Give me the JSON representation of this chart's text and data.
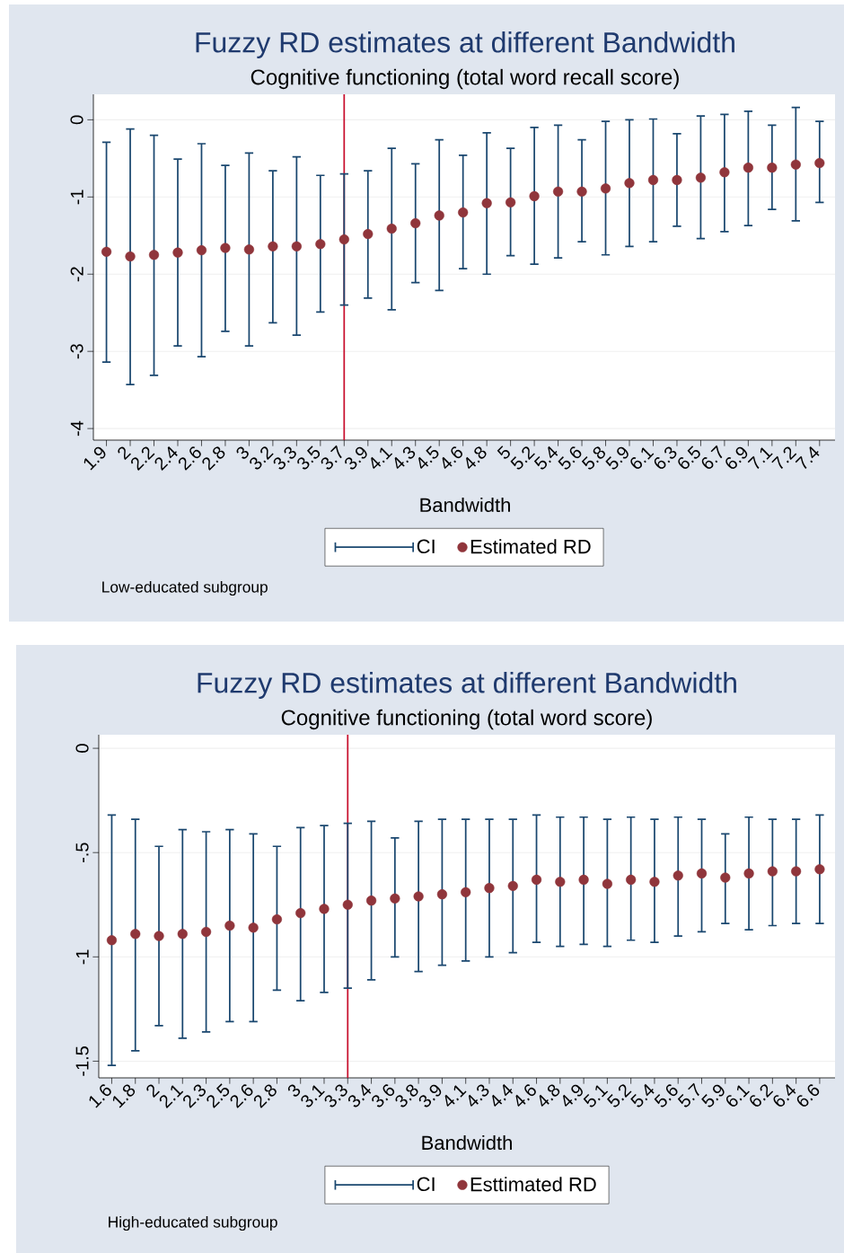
{
  "chart_data": [
    {
      "type": "scatter",
      "title": "Fuzzy RD estimates at different Bandwidth",
      "subtitle": "Cognitive functioning (total word recall score)",
      "xlabel": "Bandwidth",
      "categories": [
        "1.9",
        "2",
        "2.2",
        "2.4",
        "2.6",
        "2.8",
        "3",
        "3.2",
        "3.3",
        "3.5",
        "3.7",
        "3.9",
        "4.1",
        "4.3",
        "4.5",
        "4.6",
        "4.8",
        "5",
        "5.2",
        "5.4",
        "5.6",
        "5.8",
        "5.9",
        "6.1",
        "6.3",
        "6.5",
        "6.7",
        "6.9",
        "7.1",
        "7.2",
        "7.4"
      ],
      "series": [
        {
          "name": "Estimated RD",
          "color": "#90353b",
          "values": [
            -1.71,
            -1.77,
            -1.75,
            -1.72,
            -1.69,
            -1.66,
            -1.68,
            -1.64,
            -1.64,
            -1.61,
            -1.55,
            -1.48,
            -1.41,
            -1.34,
            -1.24,
            -1.2,
            -1.08,
            -1.07,
            -0.99,
            -0.93,
            -0.93,
            -0.89,
            -0.82,
            -0.78,
            -0.78,
            -0.75,
            -0.68,
            -0.62,
            -0.62,
            -0.58,
            -0.56
          ],
          "errors": [
            [
              -3.14,
              -0.29
            ],
            [
              -3.43,
              -0.12
            ],
            [
              -3.31,
              -0.2
            ],
            [
              -2.93,
              -0.51
            ],
            [
              -3.07,
              -0.31
            ],
            [
              -2.74,
              -0.59
            ],
            [
              -2.93,
              -0.43
            ],
            [
              -2.63,
              -0.66
            ],
            [
              -2.79,
              -0.48
            ],
            [
              -2.49,
              -0.72
            ],
            [
              -2.4,
              -0.7
            ],
            [
              -2.31,
              -0.66
            ],
            [
              -2.46,
              -0.37
            ],
            [
              -2.11,
              -0.57
            ],
            [
              -2.21,
              -0.26
            ],
            [
              -1.93,
              -0.46
            ],
            [
              -2.0,
              -0.17
            ],
            [
              -1.76,
              -0.37
            ],
            [
              -1.87,
              -0.1
            ],
            [
              -1.79,
              -0.07
            ],
            [
              -1.58,
              -0.26
            ],
            [
              -1.75,
              -0.02
            ],
            [
              -1.64,
              0.0
            ],
            [
              -1.58,
              0.01
            ],
            [
              -1.38,
              -0.18
            ],
            [
              -1.54,
              0.05
            ],
            [
              -1.45,
              0.07
            ],
            [
              -1.37,
              0.11
            ],
            [
              -1.16,
              -0.07
            ],
            [
              -1.31,
              0.16
            ],
            [
              -1.07,
              -0.02
            ]
          ]
        }
      ],
      "ylim": [
        -4.15,
        0.33
      ],
      "yticks": [
        0,
        -1,
        -2,
        -3,
        -4
      ],
      "grid": "y",
      "legend": "bottom",
      "ref_lines": [
        {
          "axis": "x",
          "value": "3.7",
          "color": "#c8102e"
        }
      ],
      "annotations": [
        "CI",
        "Low-educated subgroup"
      ]
    },
    {
      "type": "scatter",
      "title": "Fuzzy RD estimates at different Bandwidth",
      "subtitle": "Cognitive functioning (total word score)",
      "xlabel": "Bandwidth",
      "categories": [
        "1.6",
        "1.8",
        "2",
        "2.1",
        "2.3",
        "2.5",
        "2.6",
        "2.8",
        "3",
        "3.1",
        "3.3",
        "3.4",
        "3.6",
        "3.8",
        "3.9",
        "4.1",
        "4.3",
        "4.4",
        "4.6",
        "4.8",
        "4.9",
        "5.1",
        "5.2",
        "5.4",
        "5.6",
        "5.7",
        "5.9",
        "6.1",
        "6.2",
        "6.4",
        "6.6"
      ],
      "series": [
        {
          "name": "Esttimated RD",
          "color": "#90353b",
          "values": [
            -0.92,
            -0.89,
            -0.9,
            -0.89,
            -0.88,
            -0.85,
            -0.86,
            -0.82,
            -0.79,
            -0.77,
            -0.75,
            -0.73,
            -0.72,
            -0.71,
            -0.7,
            -0.69,
            -0.67,
            -0.66,
            -0.63,
            -0.64,
            -0.63,
            -0.65,
            -0.63,
            -0.64,
            -0.61,
            -0.6,
            -0.62,
            -0.6,
            -0.59,
            -0.59,
            -0.58
          ],
          "errors": [
            [
              -1.52,
              -0.32
            ],
            [
              -1.45,
              -0.34
            ],
            [
              -1.33,
              -0.47
            ],
            [
              -1.39,
              -0.39
            ],
            [
              -1.36,
              -0.4
            ],
            [
              -1.31,
              -0.39
            ],
            [
              -1.31,
              -0.41
            ],
            [
              -1.16,
              -0.47
            ],
            [
              -1.21,
              -0.38
            ],
            [
              -1.17,
              -0.37
            ],
            [
              -1.15,
              -0.36
            ],
            [
              -1.11,
              -0.35
            ],
            [
              -1.0,
              -0.43
            ],
            [
              -1.07,
              -0.35
            ],
            [
              -1.04,
              -0.34
            ],
            [
              -1.02,
              -0.34
            ],
            [
              -1.0,
              -0.34
            ],
            [
              -0.98,
              -0.34
            ],
            [
              -0.93,
              -0.32
            ],
            [
              -0.95,
              -0.33
            ],
            [
              -0.94,
              -0.33
            ],
            [
              -0.95,
              -0.34
            ],
            [
              -0.92,
              -0.33
            ],
            [
              -0.93,
              -0.34
            ],
            [
              -0.9,
              -0.33
            ],
            [
              -0.88,
              -0.34
            ],
            [
              -0.84,
              -0.41
            ],
            [
              -0.87,
              -0.33
            ],
            [
              -0.85,
              -0.34
            ],
            [
              -0.84,
              -0.34
            ],
            [
              -0.84,
              -0.32
            ]
          ]
        }
      ],
      "ylim": [
        -1.58,
        0.065
      ],
      "yticks": [
        0,
        {
          "value": -0.5,
          "label": "-.5"
        },
        -1,
        -1.5
      ],
      "grid": "y",
      "legend": "bottom",
      "ref_lines": [
        {
          "axis": "x",
          "value": "3.3",
          "color": "#c8102e"
        }
      ],
      "annotations": [
        "CI",
        "High-educated subgroup"
      ]
    }
  ]
}
